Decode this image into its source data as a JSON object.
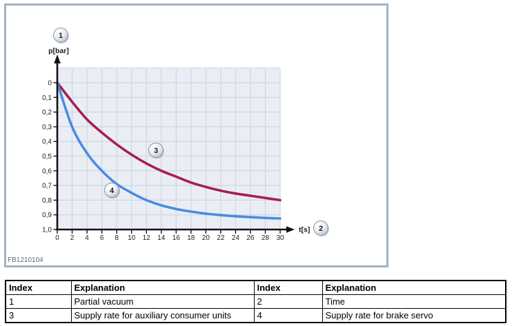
{
  "panel": {
    "watermark": "FB1210104"
  },
  "chart": {
    "callouts": [
      {
        "label": "1",
        "name": "callout-partial-vacuum"
      },
      {
        "label": "2",
        "name": "callout-time"
      },
      {
        "label": "3",
        "name": "callout-aux-consumer-curve"
      },
      {
        "label": "4",
        "name": "callout-brake-servo-curve"
      }
    ]
  },
  "chart_data": {
    "type": "line",
    "title": "",
    "xlabel": "t[s]",
    "ylabel": "p[bar]",
    "x": [
      0,
      2,
      4,
      6,
      8,
      10,
      12,
      14,
      16,
      18,
      20,
      22,
      24,
      26,
      28,
      30
    ],
    "x_tick_labels": [
      "0",
      "2",
      "4",
      "6",
      "8",
      "10",
      "12",
      "14",
      "16",
      "18",
      "20",
      "22",
      "24",
      "26",
      "28",
      "30"
    ],
    "y_ticks": [
      0,
      0.1,
      0.2,
      0.3,
      0.4,
      0.5,
      0.6,
      0.7,
      0.8,
      0.9,
      1.0
    ],
    "y_tick_labels": [
      "0",
      "0,1",
      "0,2",
      "0,3",
      "0,4",
      "0,5",
      "0,6",
      "0,7",
      "0,8",
      "0,9",
      "1,0"
    ],
    "xlim": [
      0,
      30
    ],
    "ylim": [
      0,
      1.0
    ],
    "y_axis_inverted": true,
    "grid": true,
    "grid_bg": "#eaeef4",
    "grid_line_color": "#c7d1df",
    "series": [
      {
        "name": "Supply rate for auxiliary consumer units",
        "callout": "3",
        "color": "#a61e56",
        "values": [
          0,
          0.13,
          0.25,
          0.34,
          0.42,
          0.49,
          0.55,
          0.6,
          0.64,
          0.68,
          0.71,
          0.735,
          0.755,
          0.77,
          0.785,
          0.8
        ]
      },
      {
        "name": "Supply rate for brake servo",
        "callout": "4",
        "color": "#4a8ce0",
        "values": [
          0,
          0.3,
          0.48,
          0.6,
          0.69,
          0.75,
          0.8,
          0.835,
          0.86,
          0.878,
          0.892,
          0.902,
          0.91,
          0.916,
          0.921,
          0.925
        ]
      }
    ]
  },
  "table": {
    "headers": [
      "Index",
      "Explanation",
      "Index",
      "Explanation"
    ],
    "rows": [
      [
        "1",
        "Partial vacuum",
        "2",
        "Time"
      ],
      [
        "3",
        "Supply rate for auxiliary consumer units",
        "4",
        "Supply rate for brake servo"
      ]
    ]
  }
}
